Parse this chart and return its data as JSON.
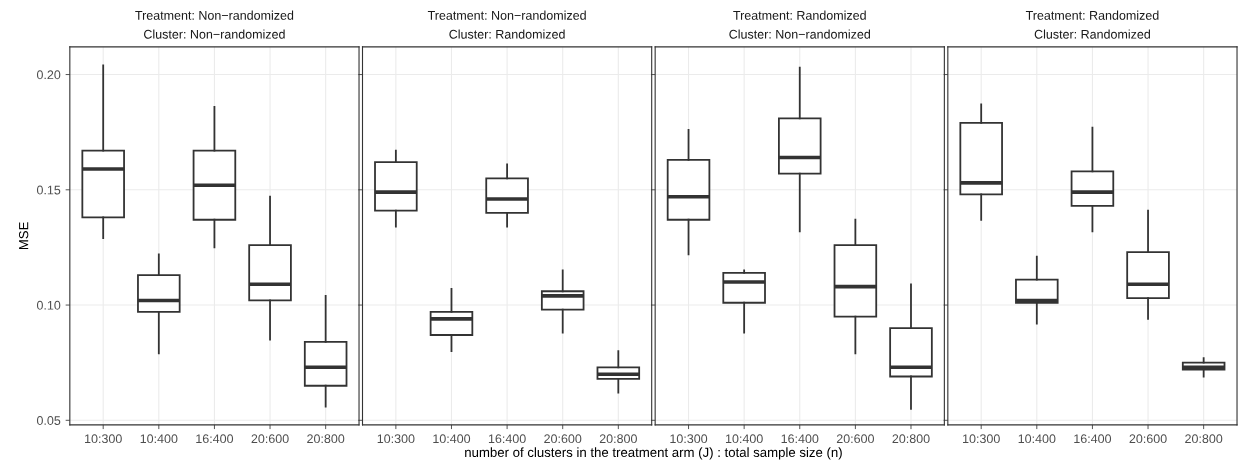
{
  "chart_data": [
    {
      "type": "box",
      "title": "Treatment: Non−randomized",
      "subtitle": "Cluster: Non−randomized",
      "ylabel": "MSE",
      "categories": [
        "10:300",
        "10:400",
        "16:400",
        "20:600",
        "20:800"
      ],
      "ylim": [
        0.048,
        0.212
      ],
      "yticks": [
        0.05,
        {
          "value": 0.1,
          "label": "0.10"
        },
        0.15,
        {
          "value": 0.2,
          "label": "0.20"
        }
      ],
      "grid": true,
      "color": "#333333",
      "boxes": [
        {
          "low": 0.129,
          "q1": 0.138,
          "median": 0.159,
          "q3": 0.167,
          "high": 0.204
        },
        {
          "low": 0.079,
          "q1": 0.097,
          "median": 0.102,
          "q3": 0.113,
          "high": 0.122
        },
        {
          "low": 0.125,
          "q1": 0.137,
          "median": 0.152,
          "q3": 0.167,
          "high": 0.186
        },
        {
          "low": 0.085,
          "q1": 0.102,
          "median": 0.109,
          "q3": 0.126,
          "high": 0.147
        },
        {
          "low": 0.056,
          "q1": 0.065,
          "median": 0.073,
          "q3": 0.084,
          "high": 0.104
        }
      ]
    },
    {
      "type": "box",
      "title": "Treatment: Non−randomized",
      "subtitle": "Cluster: Randomized",
      "xlabel": "number of clusters in the treatment arm (J) : total sample size (n)",
      "categories": [
        "10:300",
        "10:400",
        "16:400",
        "20:600",
        "20:800"
      ],
      "ylim": [
        0.048,
        0.212
      ],
      "yticks": [
        0.05,
        0.1,
        0.15,
        0.2
      ],
      "grid": true,
      "tick_labels": "x",
      "color": "#333333",
      "boxes": [
        {
          "low": 0.134,
          "q1": 0.141,
          "median": 0.149,
          "q3": 0.162,
          "high": 0.167
        },
        {
          "low": 0.08,
          "q1": 0.087,
          "median": 0.094,
          "q3": 0.097,
          "high": 0.107
        },
        {
          "low": 0.134,
          "q1": 0.14,
          "median": 0.146,
          "q3": 0.155,
          "high": 0.161
        },
        {
          "low": 0.088,
          "q1": 0.098,
          "median": 0.104,
          "q3": 0.106,
          "high": 0.115
        },
        {
          "low": 0.062,
          "q1": 0.068,
          "median": 0.07,
          "q3": 0.073,
          "high": 0.08
        }
      ]
    },
    {
      "type": "box",
      "title": "Treatment: Randomized",
      "subtitle": "Cluster: Non−randomized",
      "categories": [
        "10:300",
        "10:400",
        "16:400",
        "20:600",
        "20:800"
      ],
      "ylim": [
        0.048,
        0.212
      ],
      "yticks": [
        0.05,
        0.1,
        0.15,
        0.2
      ],
      "grid": true,
      "tick_labels": "x",
      "color": "#333333",
      "boxes": [
        {
          "low": 0.122,
          "q1": 0.137,
          "median": 0.147,
          "q3": 0.163,
          "high": 0.176
        },
        {
          "low": 0.088,
          "q1": 0.101,
          "median": 0.11,
          "q3": 0.114,
          "high": 0.115
        },
        {
          "low": 0.132,
          "q1": 0.157,
          "median": 0.164,
          "q3": 0.181,
          "high": 0.203
        },
        {
          "low": 0.079,
          "q1": 0.095,
          "median": 0.108,
          "q3": 0.126,
          "high": 0.137
        },
        {
          "low": 0.055,
          "q1": 0.069,
          "median": 0.073,
          "q3": 0.09,
          "high": 0.109
        }
      ]
    },
    {
      "type": "box",
      "title": "Treatment: Randomized",
      "subtitle": "Cluster: Randomized",
      "categories": [
        "10:300",
        "10:400",
        "16:400",
        "20:600",
        "20:800"
      ],
      "ylim": [
        0.048,
        0.212
      ],
      "yticks": [
        0.05,
        0.1,
        0.15,
        0.2
      ],
      "grid": true,
      "tick_labels": "x",
      "color": "#333333",
      "boxes": [
        {
          "low": 0.137,
          "q1": 0.148,
          "median": 0.153,
          "q3": 0.179,
          "high": 0.187
        },
        {
          "low": 0.092,
          "q1": 0.101,
          "median": 0.102,
          "q3": 0.111,
          "high": 0.121
        },
        {
          "low": 0.132,
          "q1": 0.143,
          "median": 0.149,
          "q3": 0.158,
          "high": 0.177
        },
        {
          "low": 0.094,
          "q1": 0.103,
          "median": 0.109,
          "q3": 0.123,
          "high": 0.141
        },
        {
          "low": 0.069,
          "q1": 0.072,
          "median": 0.073,
          "q3": 0.075,
          "high": 0.077
        }
      ]
    }
  ]
}
